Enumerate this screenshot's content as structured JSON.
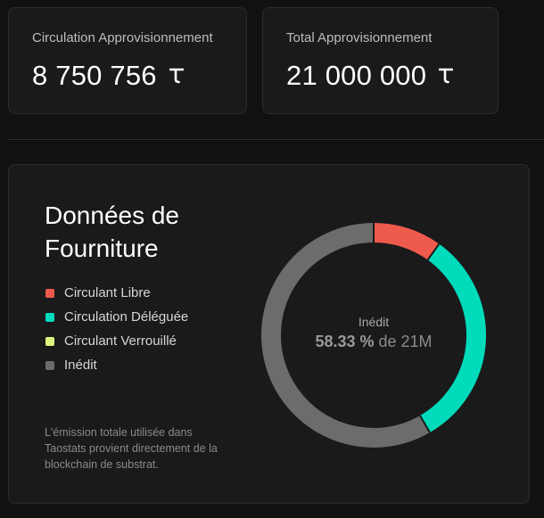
{
  "stats": {
    "circulating": {
      "label": "Circulation Approvisionnement",
      "value": "8 750 756"
    },
    "total": {
      "label": "Total Approvisionnement",
      "value": "21 000 000"
    },
    "unit_icon": "tao-icon"
  },
  "supply": {
    "title": "Données de Fourniture",
    "legend": [
      {
        "label": "Circulant Libre",
        "color": "#ee5a4c"
      },
      {
        "label": "Circulation Déléguée",
        "color": "#00dbbc"
      },
      {
        "label": "Circulant Verrouillé",
        "color": "#dcf57e"
      },
      {
        "label": "Inédit",
        "color": "#6c6c6c"
      }
    ],
    "footnote": "L'émission totale utilisée dans Taostats provient directement de la blockchain de substrat.",
    "center": {
      "label": "Inédit",
      "percent": "58.33 %",
      "suffix": " de 21M"
    }
  },
  "chart_data": {
    "type": "pie",
    "categories": [
      "Circulant Libre",
      "Circulation Déléguée",
      "Circulant Verrouillé",
      "Inédit"
    ],
    "values": [
      9.9,
      31.77,
      0,
      58.33
    ],
    "colors": [
      "#ee5a4c",
      "#00dbbc",
      "#dcf57e",
      "#6c6c6c"
    ]
  }
}
